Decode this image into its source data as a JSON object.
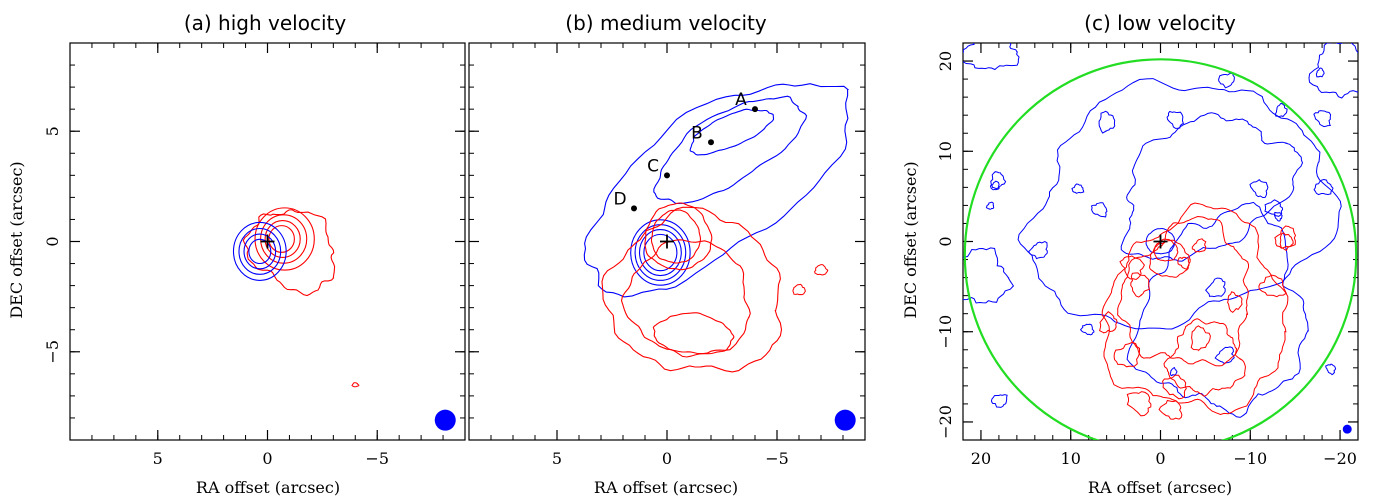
{
  "colors": {
    "blue": "#0000ff",
    "red": "#ff0000",
    "green": "#22dd22",
    "black": "#000000"
  },
  "chart_data": [
    {
      "type": "contour",
      "title": "(a) high velocity",
      "xlabel": "RA offset (arcsec)",
      "ylabel": "DEC offset (arcsec)",
      "xlim": [
        9,
        -9
      ],
      "ylim": [
        -9,
        9
      ],
      "xticks": [
        5,
        0,
        -5
      ],
      "yticks": [
        5,
        0,
        -5
      ],
      "xtick_labels": [
        "5",
        "0",
        "−5"
      ],
      "ytick_labels": [
        "5",
        "0",
        "−5"
      ],
      "center_marker": [
        0,
        0
      ],
      "beam": {
        "x": -8.1,
        "y": -8.1,
        "r": 0.45
      },
      "series": [
        {
          "color": "blue",
          "rings": [
            {
              "cx": 0.35,
              "cy": -0.45,
              "levels": [
                1.2,
                0.95,
                0.72,
                0.5
              ]
            }
          ]
        },
        {
          "color": "red",
          "rings": [
            {
              "cx": -0.6,
              "cy": 0.25,
              "levels": [
                2.1,
                1.3,
                1.0,
                0.75,
                0.5
              ]
            }
          ]
        }
      ]
    },
    {
      "type": "contour",
      "title": "(b) medium velocity",
      "xlabel": "RA offset (arcsec)",
      "xlim": [
        9,
        -9
      ],
      "ylim": [
        -9,
        9
      ],
      "xticks": [
        5,
        0,
        -5
      ],
      "yticks": [
        5,
        0,
        -5
      ],
      "xtick_labels": [
        "5",
        "0",
        "−5"
      ],
      "center_marker": [
        0,
        0
      ],
      "beam": {
        "x": -8.1,
        "y": -8.1,
        "r": 0.45
      },
      "points": [
        {
          "label": "A",
          "x": -4.0,
          "y": 6.0
        },
        {
          "label": "B",
          "x": -2.0,
          "y": 4.5
        },
        {
          "label": "C",
          "x": 0.0,
          "y": 3.0
        },
        {
          "label": "D",
          "x": 1.5,
          "y": 1.5
        }
      ],
      "series": [
        {
          "color": "blue",
          "outflow": "blue lobe to north-west"
        },
        {
          "color": "red",
          "outflow": "red lobe to south"
        }
      ]
    },
    {
      "type": "contour",
      "title": "(c) low velocity",
      "xlabel": "RA offset (arcsec)",
      "ylabel": "DEC offset (arcsec)",
      "xlim": [
        22,
        -22
      ],
      "ylim": [
        -22,
        22
      ],
      "xticks": [
        20,
        10,
        0,
        -10,
        -20
      ],
      "yticks": [
        20,
        10,
        0,
        -10,
        -20
      ],
      "xtick_labels": [
        "20",
        "10",
        "0",
        "−10",
        "−20"
      ],
      "ytick_labels": [
        "20",
        "10",
        "0",
        "−10",
        "−20"
      ],
      "center_marker": [
        0,
        0
      ],
      "circle": {
        "cx": 0,
        "cy": -1.5,
        "r": 21.8,
        "color": "green"
      },
      "beam": {
        "x": -20.8,
        "y": -20.8,
        "r": 0.45
      },
      "series": [
        {
          "color": "blue"
        },
        {
          "color": "red"
        }
      ]
    }
  ]
}
